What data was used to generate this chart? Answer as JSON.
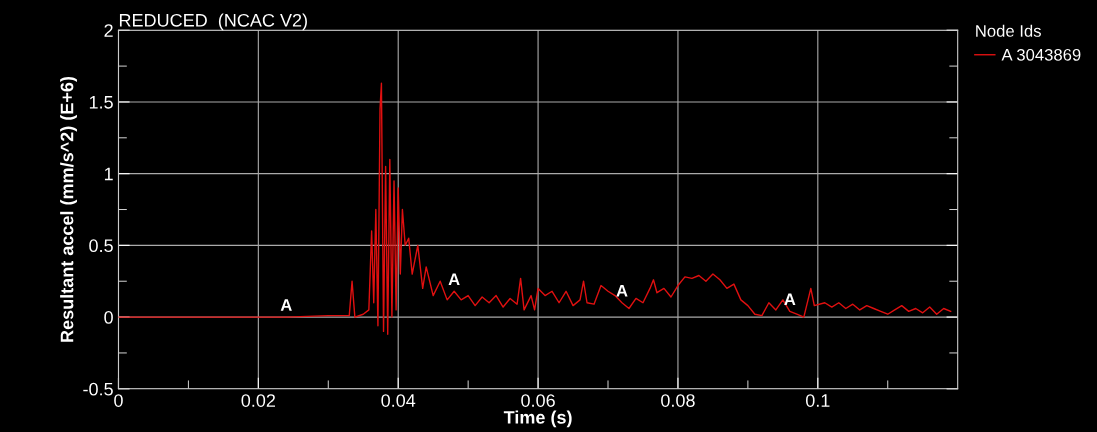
{
  "chart_data": {
    "type": "line",
    "title": "REDUCED  (NCAC V2)",
    "xlabel": "Time (s)",
    "ylabel": "Resultant accel (mm/s^2) (E+6)",
    "legend_title": "Node Ids",
    "legend": "right",
    "grid": true,
    "line_style": "solid",
    "xlim": [
      0,
      0.12
    ],
    "ylim": [
      -0.5,
      2
    ],
    "xticks": [
      0,
      {
        "value": 0.01,
        "label": null
      },
      0.02,
      {
        "value": 0.03,
        "label": null
      },
      0.04,
      {
        "value": 0.05,
        "label": null
      },
      0.06,
      {
        "value": 0.07,
        "label": null
      },
      0.08,
      {
        "value": 0.09,
        "label": null
      },
      0.1,
      {
        "value": 0.11,
        "label": null
      }
    ],
    "yticks": [
      -0.5,
      {
        "value": -0.25,
        "label": null
      },
      0,
      {
        "value": 0.25,
        "label": null
      },
      0.5,
      {
        "value": 0.75,
        "label": null
      },
      1,
      {
        "value": 1.25,
        "label": null
      },
      1.5,
      {
        "value": 1.75,
        "label": null
      },
      2
    ],
    "annotations": [
      {
        "text": "A",
        "x": 0.024,
        "y": 0
      },
      {
        "text": "A",
        "x": 0.048,
        "y": 0.18
      },
      {
        "text": "A",
        "x": 0.072,
        "y": 0.1
      },
      {
        "text": "A",
        "x": 0.096,
        "y": 0.04
      }
    ],
    "series": [
      {
        "name": "A 3043869",
        "color": "#e01010",
        "x": [
          0,
          0.02,
          0.024,
          0.03,
          0.033,
          0.0334,
          0.0338,
          0.035,
          0.0358,
          0.0362,
          0.0365,
          0.0368,
          0.0371,
          0.0374,
          0.0376,
          0.0379,
          0.0382,
          0.0385,
          0.0388,
          0.0391,
          0.0394,
          0.0397,
          0.04,
          0.0403,
          0.0406,
          0.041,
          0.0415,
          0.042,
          0.0428,
          0.0435,
          0.044,
          0.045,
          0.046,
          0.047,
          0.048,
          0.049,
          0.05,
          0.051,
          0.052,
          0.053,
          0.054,
          0.055,
          0.056,
          0.057,
          0.0575,
          0.058,
          0.059,
          0.0595,
          0.06,
          0.061,
          0.062,
          0.063,
          0.064,
          0.065,
          0.066,
          0.0665,
          0.067,
          0.068,
          0.069,
          0.07,
          0.071,
          0.072,
          0.073,
          0.074,
          0.075,
          0.076,
          0.0765,
          0.077,
          0.078,
          0.079,
          0.08,
          0.081,
          0.082,
          0.083,
          0.084,
          0.085,
          0.086,
          0.087,
          0.088,
          0.089,
          0.09,
          0.091,
          0.092,
          0.093,
          0.094,
          0.095,
          0.096,
          0.097,
          0.098,
          0.099,
          0.0995,
          0.101,
          0.102,
          0.103,
          0.104,
          0.105,
          0.106,
          0.107,
          0.108,
          0.109,
          0.11,
          0.111,
          0.112,
          0.113,
          0.114,
          0.115,
          0.116,
          0.117,
          0.118,
          0.119
        ],
        "values": [
          0,
          0,
          0,
          0.01,
          0.01,
          0.25,
          0,
          0.02,
          0.05,
          0.6,
          0.1,
          0.75,
          -0.06,
          1.45,
          1.63,
          -0.1,
          1.05,
          -0.12,
          1.1,
          0.0,
          0.95,
          0.05,
          0.9,
          0.3,
          0.75,
          0.5,
          0.55,
          0.3,
          0.5,
          0.2,
          0.35,
          0.15,
          0.25,
          0.12,
          0.18,
          0.12,
          0.15,
          0.08,
          0.14,
          0.1,
          0.15,
          0.07,
          0.13,
          0.09,
          0.27,
          0.05,
          0.15,
          0.05,
          0.2,
          0.15,
          0.18,
          0.1,
          0.18,
          0.08,
          0.12,
          0.25,
          0.1,
          0.09,
          0.22,
          0.18,
          0.15,
          0.1,
          0.06,
          0.13,
          0.1,
          0.2,
          0.26,
          0.17,
          0.2,
          0.14,
          0.22,
          0.28,
          0.27,
          0.29,
          0.25,
          0.3,
          0.26,
          0.2,
          0.23,
          0.12,
          0.08,
          0.02,
          0.01,
          0.1,
          0.05,
          0.12,
          0.04,
          0.02,
          0.0,
          0.2,
          0.08,
          0.1,
          0.07,
          0.1,
          0.06,
          0.09,
          0.05,
          0.08,
          0.06,
          0.04,
          0.02,
          0.05,
          0.08,
          0.04,
          0.06,
          0.03,
          0.07,
          0.02,
          0.06,
          0.04
        ]
      }
    ]
  }
}
